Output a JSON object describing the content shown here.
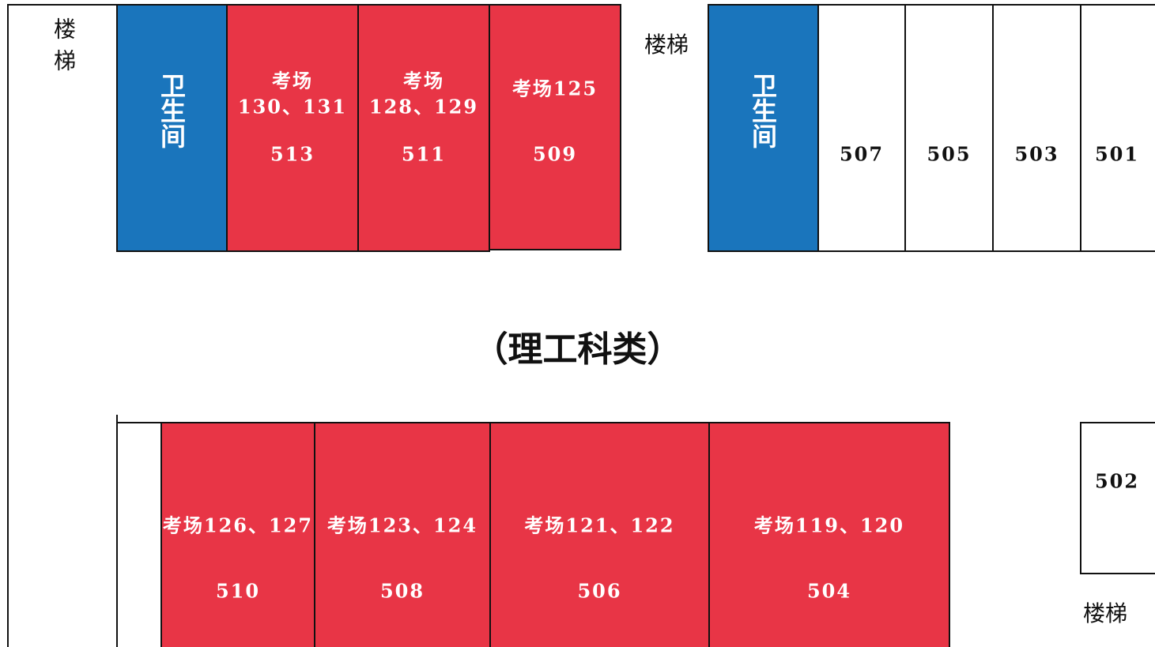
{
  "stairs": [
    "楼梯",
    "楼梯",
    "楼梯"
  ],
  "top_row": [
    {
      "name": "卫生间"
    },
    {
      "label": [
        "考场",
        "130、131"
      ],
      "number": "513"
    },
    {
      "label": [
        "考场",
        "128、129"
      ],
      "number": "511"
    },
    {
      "label": [
        "考场125"
      ],
      "number": "509"
    },
    {
      "name": "卫生间"
    },
    {
      "number": "507"
    },
    {
      "number": "505"
    },
    {
      "number": "503"
    },
    {
      "number": "501"
    }
  ],
  "title": "（理工科类）",
  "bottom_row": [
    {
      "label": [
        "考场126、127"
      ],
      "number": "510"
    },
    {
      "label": [
        "考场123、124"
      ],
      "number": "508"
    },
    {
      "label": [
        "考场121、122"
      ],
      "number": "506"
    },
    {
      "label": [
        "考场119、120"
      ],
      "number": "504"
    },
    {
      "number": "502"
    }
  ]
}
